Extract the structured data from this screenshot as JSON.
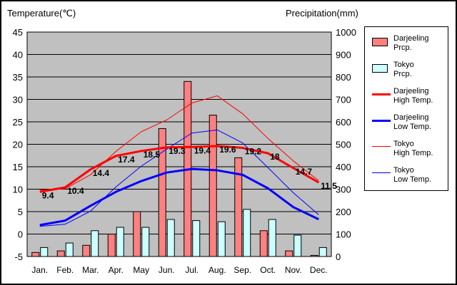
{
  "chart_data": {
    "type": "bar-line combo",
    "title": "",
    "y_left_label": "Temperature(℃)",
    "y_right_label": "Precipitation(mm)",
    "y_left_ticks": [
      "45",
      "40",
      "35",
      "30",
      "25",
      "20",
      "15",
      "10",
      "5",
      "0",
      "-5"
    ],
    "y_right_ticks": [
      "1000",
      "900",
      "800",
      "700",
      "600",
      "500",
      "400",
      "300",
      "200",
      "100",
      "0"
    ],
    "y_left_range": [
      -5,
      45
    ],
    "y_right_range": [
      0,
      1000
    ],
    "grid": true,
    "plot_background": "#c0c0c0",
    "categories": [
      "Jan.",
      "Feb.",
      "Mar.",
      "Apr.",
      "May",
      "Jun.",
      "Jul.",
      "Aug.",
      "Sep.",
      "Oct.",
      "Nov.",
      "Dec."
    ],
    "bars": [
      {
        "name": "Darjeeling Prcp.",
        "color": "#ff8080",
        "values": [
          18,
          25,
          50,
          100,
          200,
          570,
          780,
          630,
          440,
          115,
          25,
          5
        ]
      },
      {
        "name": "Tokyo Prcp.",
        "color": "#ccffff",
        "values": [
          40,
          60,
          115,
          130,
          130,
          165,
          160,
          155,
          210,
          165,
          95,
          40
        ]
      }
    ],
    "lines": [
      {
        "name": "Darjeeling High Temp.",
        "color": "#ff0000",
        "width": 3,
        "values": [
          9.4,
          10.4,
          14.4,
          17.4,
          18.5,
          19.3,
          19.4,
          19.6,
          19.2,
          18,
          14.7,
          11.5
        ],
        "labels": [
          "9.4",
          "10.4",
          "14.4",
          "17.4",
          "18.5",
          "19.3",
          "19.4",
          "19.6",
          "19.2",
          "18",
          "14.7",
          "11.5"
        ]
      },
      {
        "name": "Darjeeling Low Temp.",
        "color": "#0000ff",
        "width": 3,
        "values": [
          2,
          3,
          6.3,
          9.4,
          11.8,
          13.7,
          14.5,
          14.2,
          13.2,
          10.2,
          6,
          3.3
        ]
      },
      {
        "name": "Tokyo High Temp.",
        "color": "#ff0000",
        "width": 1,
        "values": [
          9.8,
          10.1,
          13.2,
          18.4,
          22.8,
          25.4,
          29.2,
          30.8,
          26.8,
          21.3,
          16.3,
          11.9
        ]
      },
      {
        "name": "Tokyo Low Temp.",
        "color": "#0000ff",
        "width": 1,
        "values": [
          1.7,
          2.2,
          5.1,
          10.5,
          15.1,
          18.9,
          22.5,
          23.2,
          20.3,
          14.8,
          9.2,
          4.3
        ]
      }
    ],
    "legend": [
      {
        "kind": "box",
        "color": "#ff8080",
        "text": "Darjeeling\nPrcp."
      },
      {
        "kind": "box",
        "color": "#ccffff",
        "text": "Tokyo\nPrcp."
      },
      {
        "kind": "line",
        "color": "#ff0000",
        "width": 3,
        "text": "Darjeeling\nHigh Temp."
      },
      {
        "kind": "line",
        "color": "#0000ff",
        "width": 3,
        "text": "Darjeeling\nLow Temp."
      },
      {
        "kind": "line",
        "color": "#ff0000",
        "width": 1,
        "text": "Tokyo\nHigh Temp."
      },
      {
        "kind": "line",
        "color": "#0000ff",
        "width": 1,
        "text": "Tokyo\nLow Temp."
      }
    ],
    "legend_position": "right"
  }
}
